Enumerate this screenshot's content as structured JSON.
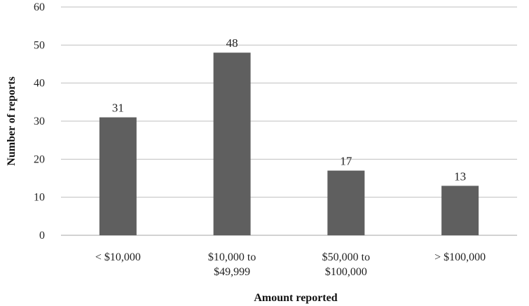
{
  "chart_data": {
    "type": "bar",
    "categories": [
      [
        "< $10,000"
      ],
      [
        "$10,000 to",
        "$49,999"
      ],
      [
        "$50,000 to",
        "$100,000"
      ],
      [
        "> $100,000"
      ]
    ],
    "values": [
      31,
      48,
      17,
      13
    ],
    "xlabel": "Amount reported",
    "ylabel": "Number of reports",
    "ylim": [
      0,
      60
    ],
    "yticks": [
      0,
      10,
      20,
      30,
      40,
      50,
      60
    ],
    "grid": true,
    "data_labels": true,
    "legend": "none",
    "colors": {
      "bar": "#5f5f5f",
      "grid": "#bfbfbf",
      "axis": "#a6a6a6"
    }
  }
}
